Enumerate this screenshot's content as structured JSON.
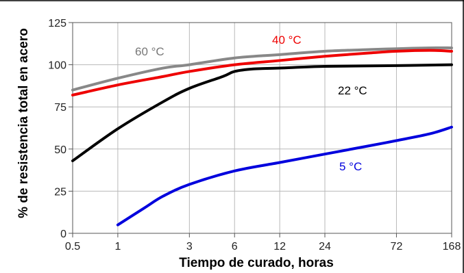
{
  "chart_data": {
    "type": "line",
    "xlabel": "Tiempo de curado, horas",
    "ylabel": "% de resistencia total en acero",
    "x_scale": "log",
    "xlim": [
      0.5,
      168
    ],
    "ylim": [
      0,
      125
    ],
    "x_ticks": [
      0.5,
      1,
      3,
      6,
      12,
      24,
      72,
      168
    ],
    "x_tick_labels": [
      "0.5",
      "1",
      "3",
      "6",
      "12",
      "24",
      "72",
      "168"
    ],
    "y_ticks": [
      0,
      25,
      50,
      75,
      100,
      125
    ],
    "y_tick_labels": [
      "0",
      "25",
      "50",
      "75",
      "100",
      "125"
    ],
    "grid": true,
    "legend": "inline labels",
    "series": [
      {
        "name": "60 °C",
        "color": "#888888",
        "x": [
          0.5,
          1,
          2,
          3,
          6,
          12,
          24,
          48,
          72,
          120,
          168
        ],
        "y": [
          85,
          92,
          98,
          100,
          104,
          106,
          108,
          109,
          109.5,
          110,
          110
        ]
      },
      {
        "name": "40 °C",
        "color": "#ee0000",
        "x": [
          0.5,
          1,
          2,
          3,
          6,
          12,
          24,
          48,
          72,
          120,
          168
        ],
        "y": [
          82,
          88,
          93,
          96,
          100,
          102.5,
          105,
          107,
          108,
          108.5,
          108
        ]
      },
      {
        "name": "22 °C",
        "color": "#000000",
        "x": [
          0.5,
          1,
          2,
          3,
          5,
          6,
          8,
          12,
          24,
          72,
          168
        ],
        "y": [
          43,
          62,
          78,
          86,
          93,
          96,
          97.5,
          98,
          99,
          99.5,
          100
        ]
      },
      {
        "name": "5 °C",
        "color": "#0000dd",
        "x": [
          1,
          1.5,
          2,
          3,
          6,
          12,
          24,
          48,
          72,
          120,
          168
        ],
        "y": [
          5,
          15,
          22,
          29,
          37,
          42,
          47,
          52,
          55,
          59,
          63
        ]
      }
    ]
  }
}
